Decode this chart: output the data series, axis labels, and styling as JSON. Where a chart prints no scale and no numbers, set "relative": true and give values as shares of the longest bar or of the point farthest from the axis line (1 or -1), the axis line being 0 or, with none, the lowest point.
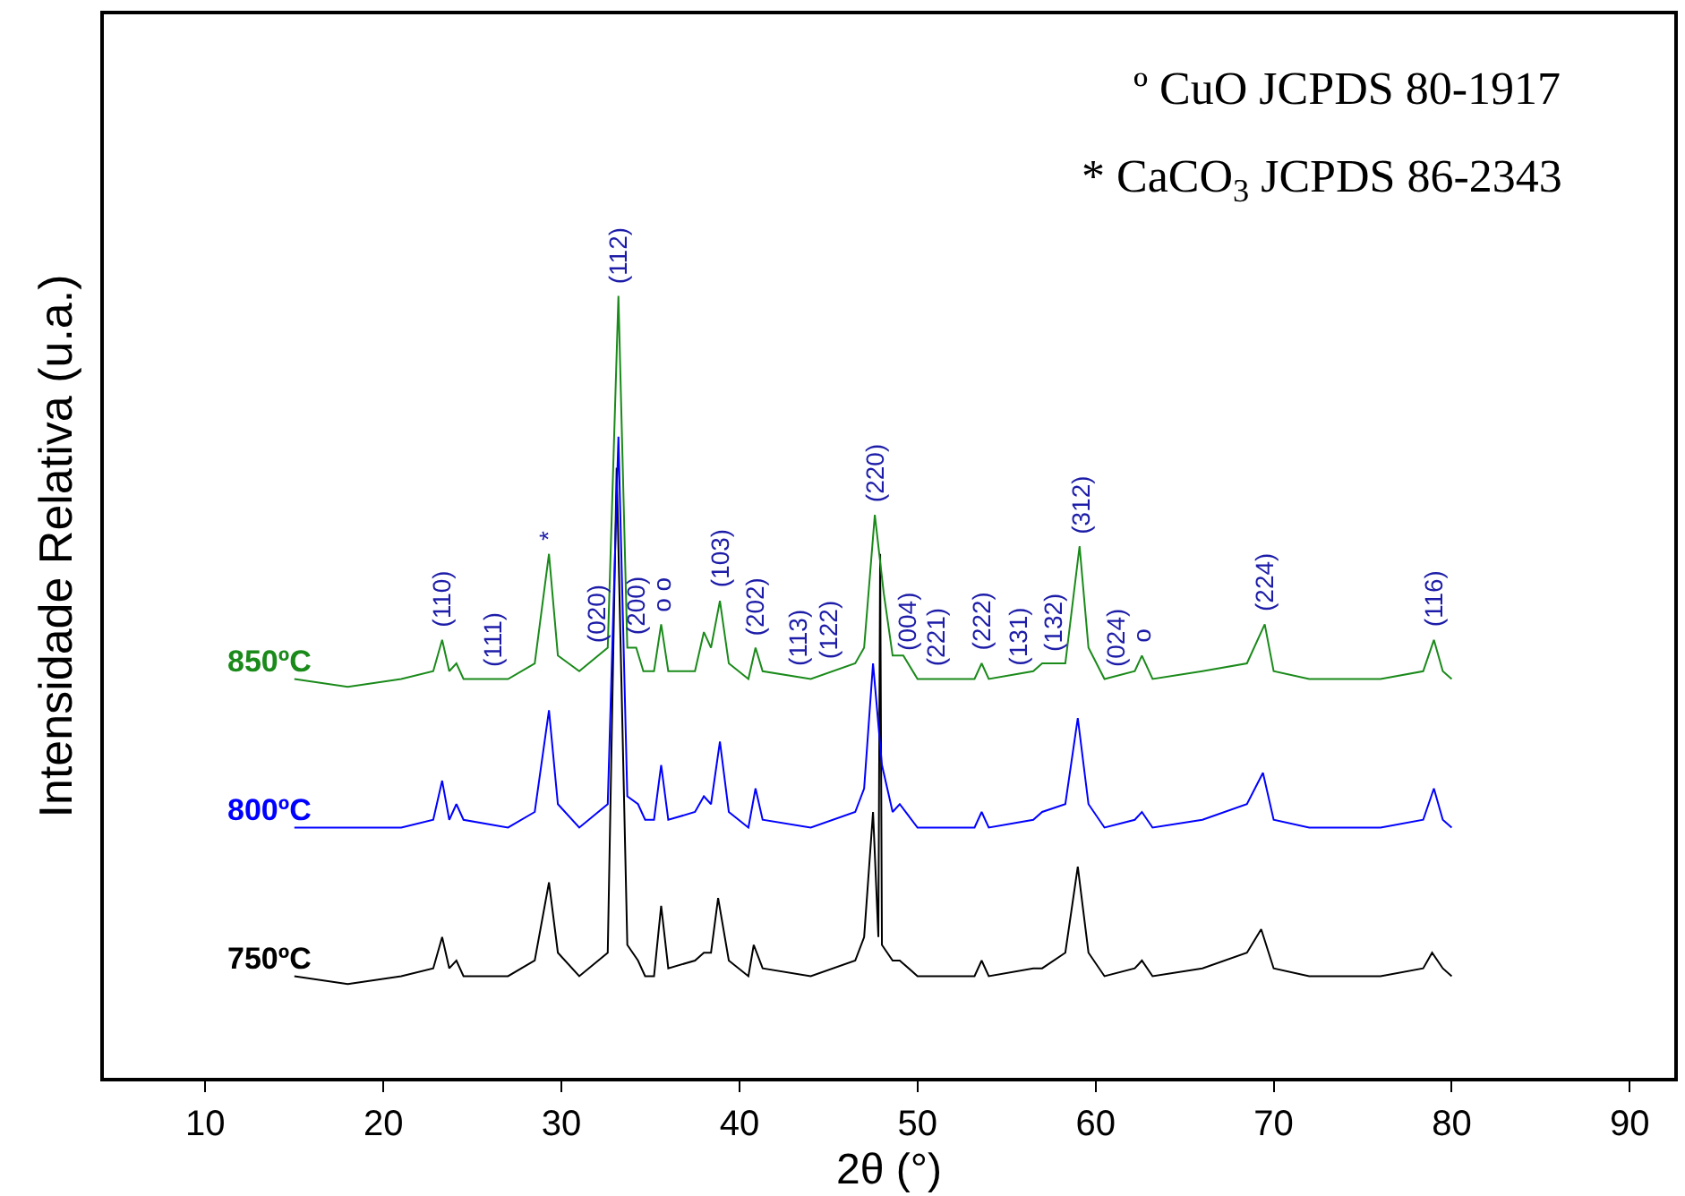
{
  "chart_data": {
    "type": "line",
    "relative": true,
    "xlabel": "2θ (°)",
    "ylabel": "Intensidade Relativa (u.a.)",
    "xlim": [
      4.3,
      92.5
    ],
    "xticks": [
      10,
      20,
      30,
      40,
      50,
      60,
      70,
      80,
      90
    ],
    "legend": false,
    "marker": "none",
    "line_style": "solid",
    "series": [
      {
        "name": "850ºC",
        "color": "#1a8a1a",
        "x": [
          15,
          18,
          21,
          22.8,
          23.3,
          23.7,
          24.1,
          24.5,
          27,
          28.5,
          29.3,
          29.8,
          31,
          32.6,
          33.2,
          33.7,
          34.2,
          34.6,
          35.2,
          35.6,
          36.0,
          37.5,
          38.0,
          38.4,
          38.9,
          39.4,
          40.5,
          40.9,
          41.3,
          44,
          46.5,
          47.0,
          47.6,
          48.1,
          48.6,
          49.2,
          50,
          53.2,
          53.6,
          54,
          56.5,
          57.0,
          58.3,
          59.1,
          59.6,
          60.5,
          62.2,
          62.6,
          63.2,
          66,
          68.5,
          69.5,
          70.0,
          72,
          76,
          78.4,
          79.0,
          79.5,
          80
        ],
        "values": [
          0.51,
          0.5,
          0.51,
          0.52,
          0.56,
          0.52,
          0.53,
          0.51,
          0.51,
          0.53,
          0.67,
          0.54,
          0.52,
          0.55,
          1.0,
          0.55,
          0.55,
          0.52,
          0.52,
          0.58,
          0.52,
          0.52,
          0.57,
          0.55,
          0.61,
          0.53,
          0.51,
          0.55,
          0.52,
          0.51,
          0.53,
          0.55,
          0.72,
          0.62,
          0.54,
          0.54,
          0.51,
          0.51,
          0.53,
          0.51,
          0.52,
          0.53,
          0.53,
          0.68,
          0.55,
          0.51,
          0.52,
          0.54,
          0.51,
          0.52,
          0.53,
          0.58,
          0.52,
          0.51,
          0.51,
          0.52,
          0.56,
          0.52,
          0.51
        ]
      },
      {
        "name": "800ºC",
        "color": "#0000ff",
        "x": [
          15,
          18,
          21,
          22.8,
          23.3,
          23.7,
          24.1,
          24.5,
          27,
          28.5,
          29.3,
          29.8,
          31,
          32.6,
          33.2,
          33.7,
          34.3,
          34.7,
          35.2,
          35.6,
          36.0,
          37.5,
          38.0,
          38.4,
          38.9,
          39.4,
          40.5,
          40.9,
          41.3,
          44,
          46.5,
          47.0,
          47.5,
          48.0,
          48.6,
          49.0,
          50,
          53.2,
          53.6,
          54,
          56.5,
          57.0,
          58.3,
          59.0,
          59.6,
          60.5,
          62.2,
          62.6,
          63.2,
          66,
          68.5,
          69.4,
          70.0,
          72,
          76,
          78.4,
          79.0,
          79.5,
          80
        ],
        "values": [
          0.32,
          0.32,
          0.32,
          0.33,
          0.38,
          0.33,
          0.35,
          0.33,
          0.32,
          0.34,
          0.47,
          0.35,
          0.32,
          0.35,
          0.82,
          0.36,
          0.35,
          0.33,
          0.33,
          0.4,
          0.33,
          0.34,
          0.36,
          0.35,
          0.43,
          0.34,
          0.32,
          0.37,
          0.33,
          0.32,
          0.34,
          0.37,
          0.53,
          0.4,
          0.34,
          0.35,
          0.32,
          0.32,
          0.34,
          0.32,
          0.33,
          0.34,
          0.35,
          0.46,
          0.35,
          0.32,
          0.33,
          0.34,
          0.32,
          0.33,
          0.35,
          0.39,
          0.33,
          0.32,
          0.32,
          0.33,
          0.37,
          0.33,
          0.32
        ]
      },
      {
        "name": "750ºC",
        "color": "#000000",
        "x": [
          15,
          18,
          21,
          22.8,
          23.3,
          23.7,
          24.1,
          24.5,
          27,
          28.5,
          29.3,
          29.8,
          31,
          32.6,
          33.1,
          33.7,
          34.3,
          34.7,
          35.2,
          35.6,
          36.0,
          37.5,
          38.0,
          38.4,
          38.8,
          39.4,
          40.5,
          40.8,
          41.3,
          44,
          46.5,
          47.0,
          47.5,
          47.8,
          47.9,
          48.0,
          48.6,
          49.0,
          50,
          53.2,
          53.6,
          54,
          56.5,
          57.0,
          58.3,
          59.0,
          59.6,
          60.5,
          62.2,
          62.6,
          63.2,
          66,
          68.5,
          69.3,
          70.0,
          72,
          76,
          78.4,
          78.9,
          79.5,
          80
        ],
        "values": [
          0.13,
          0.12,
          0.13,
          0.14,
          0.18,
          0.14,
          0.15,
          0.13,
          0.13,
          0.15,
          0.25,
          0.16,
          0.13,
          0.16,
          0.78,
          0.17,
          0.15,
          0.13,
          0.13,
          0.22,
          0.14,
          0.15,
          0.16,
          0.16,
          0.23,
          0.15,
          0.13,
          0.17,
          0.14,
          0.13,
          0.15,
          0.18,
          0.34,
          0.18,
          0.67,
          0.17,
          0.15,
          0.15,
          0.13,
          0.13,
          0.15,
          0.13,
          0.14,
          0.14,
          0.16,
          0.27,
          0.16,
          0.13,
          0.14,
          0.15,
          0.13,
          0.14,
          0.16,
          0.19,
          0.14,
          0.13,
          0.13,
          0.14,
          0.16,
          0.14,
          0.13
        ]
      }
    ],
    "annotations": [
      "º CuO JCPDS 80-1917",
      "* CaCO$_{3}$ JCPDS 86-2343",
      {
        "text": "(110)",
        "x": 23.3,
        "y": 0.56
      },
      {
        "text": "(111)",
        "x": 26.1,
        "y": 0.51
      },
      {
        "text": "*",
        "x": 29.3,
        "y": 0.67
      },
      {
        "text": "(020)",
        "x": 31.9,
        "y": 0.54
      },
      {
        "text": "(112)",
        "x": 33.2,
        "y": 1.0
      },
      {
        "text": "(200)",
        "x": 34.2,
        "y": 0.55
      },
      {
        "text": "o o",
        "x": 35.6,
        "y": 0.58
      },
      {
        "text": "(103)",
        "x": 38.9,
        "y": 0.61
      },
      {
        "text": "(202)",
        "x": 40.9,
        "y": 0.55
      },
      {
        "text": "(113)",
        "x": 43.3,
        "y": 0.51
      },
      {
        "text": "(122)",
        "x": 45.0,
        "y": 0.52
      },
      {
        "text": "(220)",
        "x": 47.6,
        "y": 0.72
      },
      {
        "text": "(004)",
        "x": 49.4,
        "y": 0.53
      },
      {
        "text": "(221)",
        "x": 51.0,
        "y": 0.51
      },
      {
        "text": "(222)",
        "x": 53.6,
        "y": 0.53
      },
      {
        "text": "(131)",
        "x": 55.6,
        "y": 0.51
      },
      {
        "text": "(132)",
        "x": 57.6,
        "y": 0.53
      },
      {
        "text": "(312)",
        "x": 59.1,
        "y": 0.68
      },
      {
        "text": "(024)",
        "x": 61.1,
        "y": 0.51
      },
      {
        "text": "o",
        "x": 62.6,
        "y": 0.54
      },
      {
        "text": "(224)",
        "x": 69.5,
        "y": 0.58
      },
      {
        "text": "(116)",
        "x": 79.0,
        "y": 0.56
      }
    ]
  }
}
